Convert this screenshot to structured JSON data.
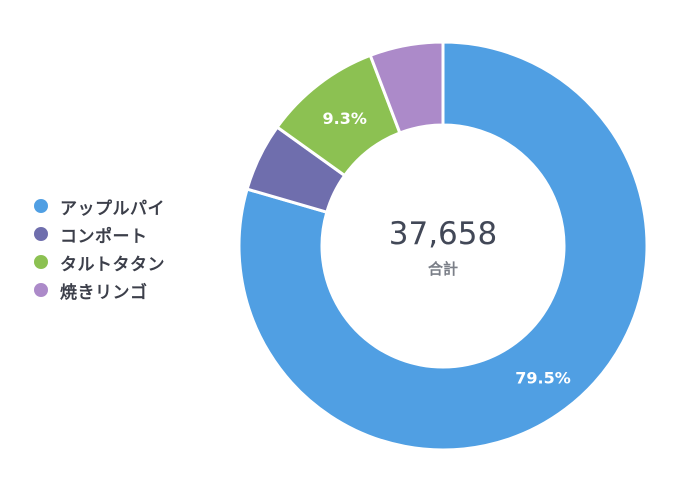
{
  "colors": {
    "apple_pie": "#509fe3",
    "compote": "#6f6ead",
    "tarte_tatin": "#8cc152",
    "baked_apple": "#ac8ac9"
  },
  "center": {
    "total": "37,658",
    "label": "合計"
  },
  "legend": [
    {
      "label": "アップルパイ",
      "color": "#509fe3"
    },
    {
      "label": "コンポート",
      "color": "#6f6ead"
    },
    {
      "label": "タルトタタン",
      "color": "#8cc152"
    },
    {
      "label": "焼きリンゴ",
      "color": "#ac8ac9"
    }
  ],
  "chart_data": {
    "type": "pie",
    "total": 37658,
    "slices": [
      {
        "label": "アップルパイ",
        "percent": 79.5,
        "data_label": "79.5%",
        "color": "#509fe3"
      },
      {
        "label": "コンポート",
        "percent": 5.4,
        "data_label": "",
        "color": "#6f6ead"
      },
      {
        "label": "タルトタタン",
        "percent": 9.3,
        "data_label": "9.3%",
        "color": "#8cc152"
      },
      {
        "label": "焼きリンゴ",
        "percent": 5.8,
        "data_label": "",
        "color": "#ac8ac9"
      }
    ],
    "legend_position": "left"
  }
}
